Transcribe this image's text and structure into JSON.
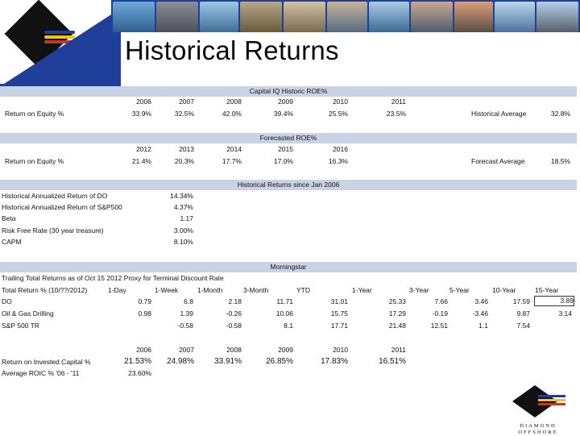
{
  "title": "Historical Returns",
  "brand_colors": {
    "navy": "#1f3f9a",
    "yellow": "#f1c40f",
    "red": "#c0392b",
    "band": "#c9d3e6"
  },
  "logo_text": "DIAMOND OFFSHORE",
  "section1": {
    "header": "Capital IQ Historic ROE%",
    "years": [
      "2006",
      "2007",
      "2008",
      "2009",
      "2010",
      "2011"
    ],
    "row_label": "Return on Equity %",
    "values": [
      "33.9%",
      "32.5%",
      "42.0%",
      "39.4%",
      "25.5%",
      "23.5%"
    ],
    "avg_label": "Historical Average",
    "avg_value": "32.8%"
  },
  "section2": {
    "header": "Forecasted ROE%",
    "years": [
      "2012",
      "2013",
      "2014",
      "2015",
      "2016"
    ],
    "row_label": "Return on Equity %",
    "values": [
      "21.4%",
      "20.3%",
      "17.7%",
      "17.0%",
      "16.3%"
    ],
    "avg_label": "Forecast Average",
    "avg_value": "18.5%"
  },
  "section3": {
    "header": "Historical Returns since Jan 2006",
    "rows": [
      {
        "label": "Historical Annualized Return of DO",
        "value": "14.34%"
      },
      {
        "label": "Historical Annualized Return of S&P500",
        "value": "4.37%"
      },
      {
        "label": "Beta",
        "value": "1.17"
      },
      {
        "label": "Risk Free Rate (30 year treasure)",
        "value": "3.00%"
      },
      {
        "label": "CAPM",
        "value": "8.10%"
      }
    ]
  },
  "section4": {
    "header": "Morningstar",
    "subtitle": "Trailing Total Returns as of Oct 15 2012  Proxy for Terminal Discount Rate",
    "columns": [
      "Total Return % (10/??/2012)",
      "1-Day",
      "1-Week",
      "1-Month",
      "3-Month",
      "YTD",
      "1-Year",
      "3-Year",
      "5-Year",
      "10-Year",
      "15-Year"
    ],
    "rows": [
      {
        "label": "DO",
        "values": [
          "0.79",
          "6.8",
          "2.18",
          "11.71",
          "31.01",
          "25.33",
          "7.66",
          "3.46",
          "17.59",
          "3.89"
        ]
      },
      {
        "label": "Oil & Gas Drilling",
        "values": [
          "0.98",
          "1.39",
          "-0.26",
          "10.06",
          "15.75",
          "17.29",
          "-0.19",
          "-3.46",
          "9.87",
          "3.14"
        ]
      },
      {
        "label": "S&P 500 TR",
        "values": [
          "",
          "-0.58",
          "-0.58",
          "8.1",
          "17.71",
          "21.48",
          "12.51",
          "1.1",
          "7.54",
          ""
        ]
      }
    ],
    "roic_years": [
      "2006",
      "2007",
      "2008",
      "2009",
      "2010",
      "2011"
    ],
    "roic_label": "Return on Invested Capital %",
    "roic_values": [
      "21.53%",
      "24.98%",
      "33.91%",
      "26.85%",
      "17.83%",
      "16.51%"
    ],
    "avg_roic_label": "Average ROIC % '06 - '11",
    "avg_roic_value": "23.60%"
  }
}
